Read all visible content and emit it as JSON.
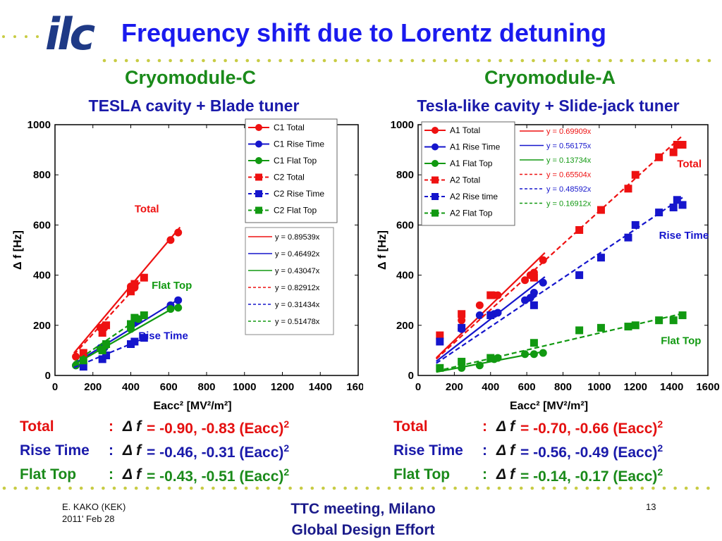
{
  "logo": "ilc",
  "title": "Frequency shift due to Lorentz detuning",
  "colors": {
    "total": "#ee1111",
    "rise": "#1515cc",
    "flat": "#119911",
    "title": "#1a1aee"
  },
  "panels": [
    {
      "title": "Cryomodule-C",
      "subtitle": "TESLA cavity + Blade tuner",
      "fits": [
        {
          "label": "Total",
          "sep": ":",
          "dsym": "Δ f",
          "eq": "= -0.90, -0.83 (Eacc)",
          "sup": "2"
        },
        {
          "label": "Rise Time",
          "sep": ":",
          "dsym": "Δ f",
          "eq": "= -0.46, -0.31 (Eacc)",
          "sup": "2"
        },
        {
          "label": "Flat Top",
          "sep": ":",
          "dsym": "Δ f",
          "eq": "= -0.43, -0.51 (Eacc)",
          "sup": "2"
        }
      ]
    },
    {
      "title": "Cryomodule-A",
      "subtitle": "Tesla-like cavity + Slide-jack tuner",
      "fits": [
        {
          "label": "Total",
          "sep": ":",
          "dsym": "Δ f",
          "eq": "= -0.70, -0.66 (Eacc)",
          "sup": "2"
        },
        {
          "label": "Rise Time",
          "sep": ":",
          "dsym": "Δ f",
          "eq": "= -0.56, -0.49 (Eacc)",
          "sup": "2"
        },
        {
          "label": "Flat Top",
          "sep": ":",
          "dsym": "Δ f",
          "eq": "= -0.14, -0.17 (Eacc)",
          "sup": "2"
        }
      ]
    }
  ],
  "footer": {
    "author": "E. KAKO (KEK)",
    "date": "2011' Feb 28",
    "meeting": "TTC meeting, Milano",
    "effort": "Global Design Effort",
    "page": "13"
  },
  "chart_data": [
    {
      "type": "scatter",
      "xlabel": "Eacc² [MV²/m²]",
      "ylabel": "Δ f [Hz]",
      "xlim": [
        0,
        1600
      ],
      "ylim": [
        0,
        1000
      ],
      "xticks": [
        0,
        200,
        400,
        600,
        800,
        1000,
        1200,
        1400,
        1600
      ],
      "yticks": [
        0,
        200,
        400,
        600,
        800,
        1000
      ],
      "legend": [
        {
          "name": "C1 Total",
          "color": "#ee1111",
          "dash": false,
          "marker": "circle"
        },
        {
          "name": "C1 Rise Time",
          "color": "#1515cc",
          "dash": false,
          "marker": "circle"
        },
        {
          "name": "C1 Flat Top",
          "color": "#119911",
          "dash": false,
          "marker": "circle"
        },
        {
          "name": "C2 Total",
          "color": "#ee1111",
          "dash": true,
          "marker": "square"
        },
        {
          "name": "C2 Rise Time",
          "color": "#1515cc",
          "dash": true,
          "marker": "square"
        },
        {
          "name": "C2 Flat Top",
          "color": "#119911",
          "dash": true,
          "marker": "square"
        }
      ],
      "fit_legend": [
        {
          "text": "y = 0.89539x",
          "color": "#ee1111",
          "dash": false
        },
        {
          "text": "y = 0.46492x",
          "color": "#1515cc",
          "dash": false
        },
        {
          "text": "y = 0.43047x",
          "color": "#119911",
          "dash": false
        },
        {
          "text": "y = 0.82912x",
          "color": "#ee1111",
          "dash": true
        },
        {
          "text": "y = 0.31434x",
          "color": "#1515cc",
          "dash": true
        },
        {
          "text": "y = 0.51478x",
          "color": "#119911",
          "dash": true
        }
      ],
      "annotations": [
        {
          "text": "Total",
          "x": 420,
          "y": 650,
          "color": "#ee1111"
        },
        {
          "text": "Flat Top",
          "x": 510,
          "y": 345,
          "color": "#119911"
        },
        {
          "text": "Rise Time",
          "x": 440,
          "y": 145,
          "color": "#1515cc"
        }
      ],
      "series": [
        {
          "name": "C1 Total",
          "marker": "circle",
          "color": "#ee1111",
          "slope": 0.89539,
          "dash": false,
          "xr": [
            100,
            660
          ],
          "x": [
            110,
            240,
            260,
            400,
            420,
            610,
            650
          ],
          "y": [
            75,
            190,
            190,
            355,
            350,
            540,
            570
          ]
        },
        {
          "name": "C1 Rise Time",
          "marker": "circle",
          "color": "#1515cc",
          "slope": 0.46492,
          "dash": false,
          "xr": [
            100,
            660
          ],
          "x": [
            110,
            240,
            260,
            420,
            440,
            610,
            650
          ],
          "y": [
            40,
            110,
            110,
            215,
            220,
            280,
            300
          ]
        },
        {
          "name": "C1 Flat Top",
          "marker": "circle",
          "color": "#119911",
          "slope": 0.43047,
          "dash": false,
          "xr": [
            100,
            660
          ],
          "x": [
            110,
            240,
            270,
            400,
            440,
            610,
            650
          ],
          "y": [
            40,
            105,
            120,
            185,
            225,
            265,
            270
          ]
        },
        {
          "name": "C2 Total",
          "marker": "square",
          "color": "#ee1111",
          "slope": 0.82912,
          "dash": true,
          "xr": [
            100,
            480
          ],
          "x": [
            150,
            250,
            270,
            400,
            420,
            470
          ],
          "y": [
            90,
            170,
            200,
            335,
            365,
            390
          ]
        },
        {
          "name": "C2 Rise Time",
          "marker": "square",
          "color": "#1515cc",
          "slope": 0.31434,
          "dash": true,
          "xr": [
            100,
            480
          ],
          "x": [
            150,
            250,
            270,
            400,
            420,
            470
          ],
          "y": [
            35,
            65,
            80,
            125,
            135,
            150
          ]
        },
        {
          "name": "C2 Flat Top",
          "marker": "square",
          "color": "#119911",
          "slope": 0.51478,
          "dash": true,
          "xr": [
            100,
            480
          ],
          "x": [
            150,
            250,
            270,
            400,
            420,
            470
          ],
          "y": [
            60,
            100,
            125,
            205,
            230,
            240
          ]
        }
      ]
    },
    {
      "type": "scatter",
      "xlabel": "Eacc² [MV²/m²]",
      "ylabel": "Δ f [Hz]",
      "xlim": [
        0,
        1600
      ],
      "ylim": [
        0,
        1000
      ],
      "xticks": [
        0,
        200,
        400,
        600,
        800,
        1000,
        1200,
        1400,
        1600
      ],
      "yticks": [
        0,
        200,
        400,
        600,
        800,
        1000
      ],
      "legend": [
        {
          "name": "A1 Total",
          "color": "#ee1111",
          "dash": false,
          "marker": "circle"
        },
        {
          "name": "A1 Rise Time",
          "color": "#1515cc",
          "dash": false,
          "marker": "circle"
        },
        {
          "name": "A1 Flat Top",
          "color": "#119911",
          "dash": false,
          "marker": "circle"
        },
        {
          "name": "A2 Total",
          "color": "#ee1111",
          "dash": true,
          "marker": "square"
        },
        {
          "name": "A2 Rise time",
          "color": "#1515cc",
          "dash": true,
          "marker": "square"
        },
        {
          "name": "A2 Flat Top",
          "color": "#119911",
          "dash": true,
          "marker": "square"
        }
      ],
      "fit_legend": [
        {
          "text": "y = 0.69909x",
          "color": "#ee1111",
          "dash": false
        },
        {
          "text": "y = 0.56175x",
          "color": "#1515cc",
          "dash": false
        },
        {
          "text": "y = 0.13734x",
          "color": "#119911",
          "dash": false
        },
        {
          "text": "y = 0.65504x",
          "color": "#ee1111",
          "dash": true
        },
        {
          "text": "y = 0.48592x",
          "color": "#1515cc",
          "dash": true
        },
        {
          "text": "y = 0.16912x",
          "color": "#119911",
          "dash": true
        }
      ],
      "annotations": [
        {
          "text": "Total",
          "x": 1430,
          "y": 830,
          "color": "#ee1111"
        },
        {
          "text": "Rise Time",
          "x": 1330,
          "y": 545,
          "color": "#1515cc"
        },
        {
          "text": "Flat Top",
          "x": 1340,
          "y": 125,
          "color": "#119911"
        }
      ],
      "series": [
        {
          "name": "A1 Total",
          "marker": "circle",
          "color": "#ee1111",
          "slope": 0.69909,
          "dash": false,
          "xr": [
            100,
            700
          ],
          "x": [
            240,
            340,
            420,
            440,
            590,
            620,
            640,
            690
          ],
          "y": [
            220,
            280,
            320,
            320,
            380,
            400,
            410,
            460
          ]
        },
        {
          "name": "A1 Rise Time",
          "marker": "circle",
          "color": "#1515cc",
          "slope": 0.56175,
          "dash": false,
          "xr": [
            100,
            700
          ],
          "x": [
            240,
            340,
            420,
            440,
            590,
            620,
            640,
            690
          ],
          "y": [
            185,
            240,
            245,
            250,
            300,
            310,
            330,
            370
          ]
        },
        {
          "name": "A1 Flat Top",
          "marker": "circle",
          "color": "#119911",
          "slope": 0.13734,
          "dash": false,
          "xr": [
            100,
            700
          ],
          "x": [
            240,
            340,
            420,
            440,
            590,
            640,
            690
          ],
          "y": [
            30,
            40,
            65,
            70,
            85,
            85,
            90
          ]
        },
        {
          "name": "A2 Total",
          "marker": "square",
          "color": "#ee1111",
          "slope": 0.65504,
          "dash": true,
          "xr": [
            100,
            1460
          ],
          "x": [
            120,
            240,
            400,
            640,
            890,
            1010,
            1160,
            1200,
            1330,
            1410,
            1430,
            1460
          ],
          "y": [
            160,
            245,
            320,
            390,
            580,
            660,
            745,
            800,
            870,
            890,
            920,
            920
          ]
        },
        {
          "name": "A2 Rise time",
          "marker": "square",
          "color": "#1515cc",
          "slope": 0.48592,
          "dash": true,
          "xr": [
            100,
            1460
          ],
          "x": [
            120,
            240,
            400,
            640,
            890,
            1010,
            1160,
            1200,
            1330,
            1410,
            1430,
            1460
          ],
          "y": [
            135,
            190,
            240,
            280,
            400,
            470,
            550,
            600,
            650,
            670,
            700,
            680
          ]
        },
        {
          "name": "A2 Flat Top",
          "marker": "square",
          "color": "#119911",
          "slope": 0.16912,
          "dash": true,
          "xr": [
            100,
            1460
          ],
          "x": [
            120,
            240,
            400,
            640,
            890,
            1010,
            1160,
            1200,
            1330,
            1410,
            1460
          ],
          "y": [
            30,
            55,
            70,
            130,
            180,
            190,
            195,
            200,
            220,
            220,
            240
          ]
        }
      ]
    }
  ]
}
